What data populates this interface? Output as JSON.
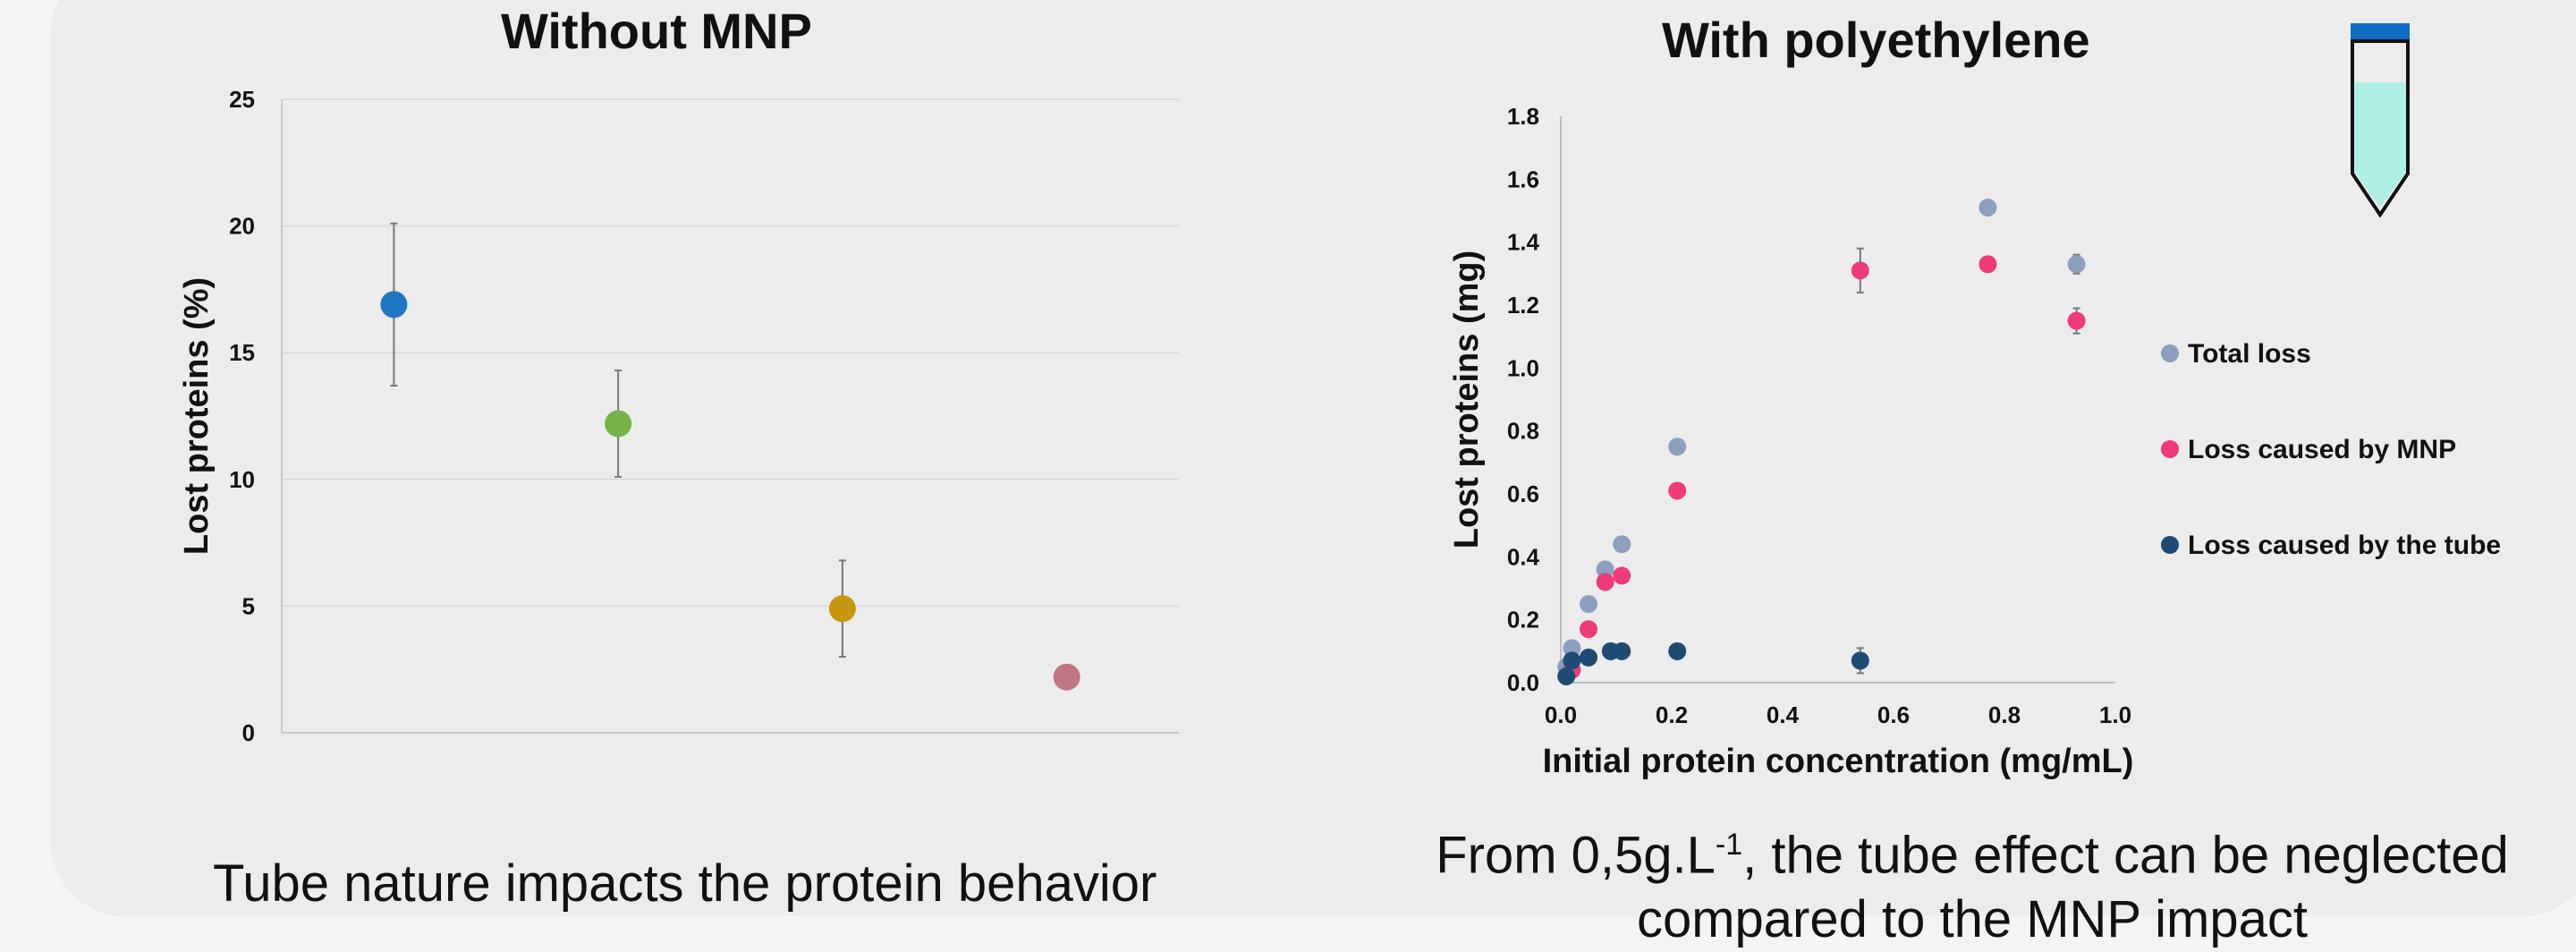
{
  "chart_data": [
    {
      "type": "scatter",
      "title": "Without MNP",
      "ylabel": "Lost proteins (%)",
      "xlabel": "",
      "ylim": [
        0,
        25
      ],
      "yticks": [
        0,
        5,
        10,
        15,
        20,
        25
      ],
      "grid": true,
      "legend": "none",
      "points": [
        {
          "x": 1,
          "y": 16.9,
          "err": 3.2,
          "color": "#1f77c4"
        },
        {
          "x": 2,
          "y": 12.2,
          "err": 2.1,
          "color": "#78b24b"
        },
        {
          "x": 3,
          "y": 4.9,
          "err": 1.9,
          "color": "#c8960f"
        },
        {
          "x": 4,
          "y": 2.2,
          "err": 0.3,
          "color": "#c27585"
        }
      ]
    },
    {
      "type": "scatter",
      "title": "With polyethylene",
      "xlabel": "Initial protein concentration (mg/mL)",
      "ylabel": "Lost proteins (mg)",
      "xlim": [
        0,
        1
      ],
      "ylim": [
        0,
        1.8
      ],
      "xticks": [
        "0.0",
        "0.2",
        "0.4",
        "0.6",
        "0.8",
        "1.0"
      ],
      "yticks": [
        "0.0",
        "0.2",
        "0.4",
        "0.6",
        "0.8",
        "1.0",
        "1.2",
        "1.4",
        "1.6",
        "1.8"
      ],
      "grid": false,
      "legend": "right",
      "series": [
        {
          "name": "Total loss",
          "color": "#8c9fbd",
          "x": [
            0.01,
            0.02,
            0.05,
            0.08,
            0.11,
            0.21,
            0.77,
            0.93
          ],
          "y": [
            0.05,
            0.11,
            0.25,
            0.36,
            0.44,
            0.75,
            1.51,
            1.33
          ],
          "err": [
            0,
            0,
            0,
            0,
            0,
            0,
            0,
            0.03
          ]
        },
        {
          "name": "Loss caused by MNP",
          "color": "#ee3a7a",
          "x": [
            0.02,
            0.05,
            0.08,
            0.11,
            0.21,
            0.54,
            0.77,
            0.93
          ],
          "y": [
            0.04,
            0.17,
            0.32,
            0.34,
            0.61,
            1.31,
            1.33,
            1.15
          ],
          "err": [
            0,
            0,
            0,
            0,
            0,
            0.07,
            0,
            0.04
          ]
        },
        {
          "name": "Loss caused by the tube",
          "color": "#1f4a74",
          "x": [
            0.01,
            0.02,
            0.05,
            0.09,
            0.11,
            0.21,
            0.54
          ],
          "y": [
            0.02,
            0.07,
            0.08,
            0.1,
            0.1,
            0.1,
            0.07
          ],
          "err": [
            0,
            0,
            0,
            0,
            0,
            0,
            0.04
          ]
        }
      ]
    }
  ],
  "captions": {
    "left": "Tube nature impacts the protein behavior",
    "right_line1_prefix": "From 0,5g.L",
    "right_line1_sup": "-1",
    "right_line1_suffix": ", the tube effect can be neglected",
    "right_line2": "compared to the MNP impact"
  },
  "tube_icon": {
    "cap_color": "#0f6cc0",
    "liquid_color": "#aef0e6",
    "name": "tube-icon"
  }
}
